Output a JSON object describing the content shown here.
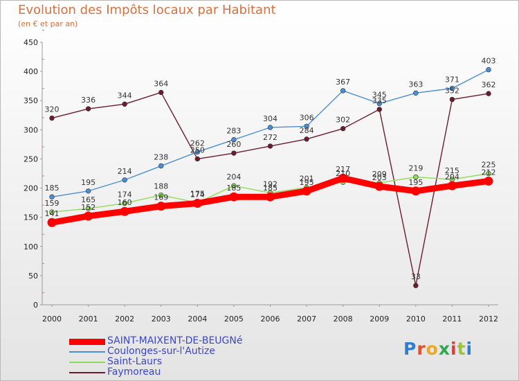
{
  "chart_data": {
    "type": "line",
    "title": "Evolution des Impôts locaux par Habitant",
    "subtitle": "(en € et par an)",
    "xlabel": "",
    "ylabel": "",
    "ylim": [
      0,
      450
    ],
    "yticks": [
      "0",
      "50",
      "100",
      "150",
      "200",
      "250",
      "300",
      "350",
      "400",
      "450"
    ],
    "categories": [
      "2000",
      "2001",
      "2002",
      "2003",
      "2004",
      "2005",
      "2006",
      "2007",
      "2008",
      "2009",
      "2010",
      "2011",
      "2012"
    ],
    "grid": false,
    "legend": "bottom-left",
    "series": [
      {
        "name": "Faymoreau",
        "color": "#6b1b2e",
        "values": [
          320,
          336,
          344,
          364,
          250,
          260,
          272,
          284,
          302,
          335,
          33,
          352,
          362
        ],
        "labels": [
          "320",
          "336",
          "344",
          "364",
          "250",
          "260",
          "272",
          "284",
          "302",
          "335",
          "33",
          "352",
          "362"
        ]
      },
      {
        "name": "Coulonges-sur-l'Autize",
        "color": "#4a8fd6",
        "values": [
          185,
          195,
          214,
          238,
          262,
          283,
          304,
          306,
          367,
          345,
          363,
          371,
          403
        ],
        "labels": [
          "185",
          "195",
          "214",
          "238",
          "262",
          "283",
          "304",
          "306",
          "367",
          "345",
          "363",
          "371",
          "403"
        ]
      },
      {
        "name": "Saint-Laurs",
        "color": "#8fdc59",
        "values": [
          159,
          165,
          174,
          188,
          175,
          204,
          192,
          201,
          210,
          209,
          219,
          215,
          225
        ],
        "labels": [
          "159",
          "165",
          "174",
          "188",
          "175",
          "204",
          "192",
          "201",
          "210",
          "209",
          "219",
          "215",
          "225"
        ]
      },
      {
        "name": "SAINT-MAIXENT-DE-BEUGNé",
        "color": "#ff0000",
        "values": [
          141,
          152,
          160,
          169,
          174,
          185,
          185,
          195,
          217,
          203,
          195,
          204,
          212
        ],
        "labels": [
          "141",
          "152",
          "160",
          "169",
          "174",
          "185",
          "185",
          "195",
          "217",
          "203",
          "195",
          "204",
          "212"
        ]
      }
    ]
  },
  "legend": {
    "items": [
      {
        "label": "SAINT-MAIXENT-DE-BEUGNé",
        "color": "#ff0000"
      },
      {
        "label": "Coulonges-sur-l'Autize",
        "color": "#4a8fd6"
      },
      {
        "label": "Saint-Laurs",
        "color": "#8fdc59"
      },
      {
        "label": "Faymoreau",
        "color": "#6b1b2e"
      }
    ]
  },
  "logo": {
    "text": "Proxiti",
    "letters": [
      "P",
      "r",
      "o",
      "x",
      "i",
      "t",
      "i"
    ],
    "colors": [
      "#2f7fd0",
      "#e84e25",
      "#f3a71c",
      "#2fa84f",
      "#e23b3b",
      "#9bc43a",
      "#2f7fd0"
    ]
  }
}
